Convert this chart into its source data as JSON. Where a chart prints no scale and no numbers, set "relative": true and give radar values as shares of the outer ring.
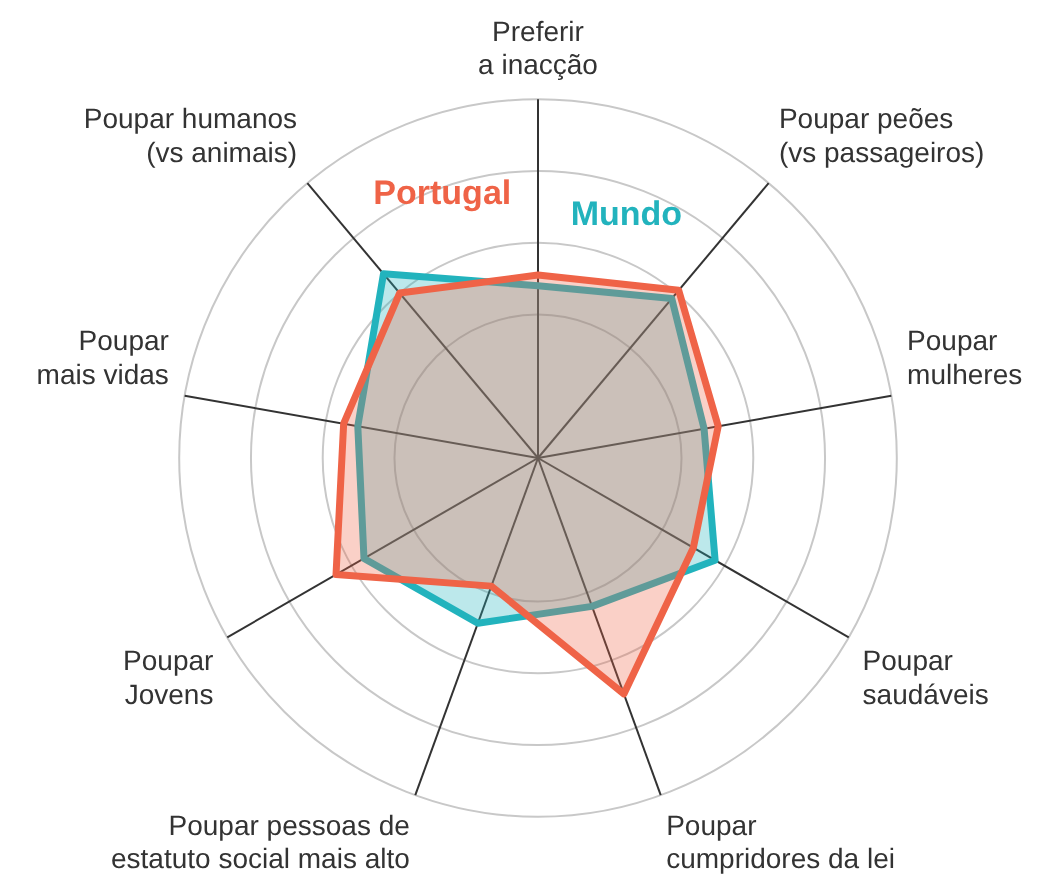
{
  "chart_data": {
    "type": "radar",
    "relative": true,
    "grid": true,
    "legend": false,
    "marker": "none",
    "categories": [
      "Preferir\na inacção",
      "Poupar peões\n(vs passageiros)",
      "Poupar\nmulheres",
      "Poupar\nsaudáveis",
      "Poupar\ncumpridores da lei",
      "Poupar pessoas de\nestatuto social mais alto",
      "Poupar\nJovens",
      "Poupar\nmais vidas",
      "Poupar humanos\n(vs animais)"
    ],
    "series": [
      {
        "name": "Portugal",
        "color": "#ef6347",
        "values": [
          0.51,
          0.61,
          0.51,
          0.5,
          0.7,
          0.38,
          0.65,
          0.55,
          0.6
        ]
      },
      {
        "name": "Mundo",
        "color": "#22b3bd",
        "values": [
          0.48,
          0.58,
          0.47,
          0.57,
          0.44,
          0.49,
          0.56,
          0.51,
          0.67
        ]
      }
    ]
  }
}
